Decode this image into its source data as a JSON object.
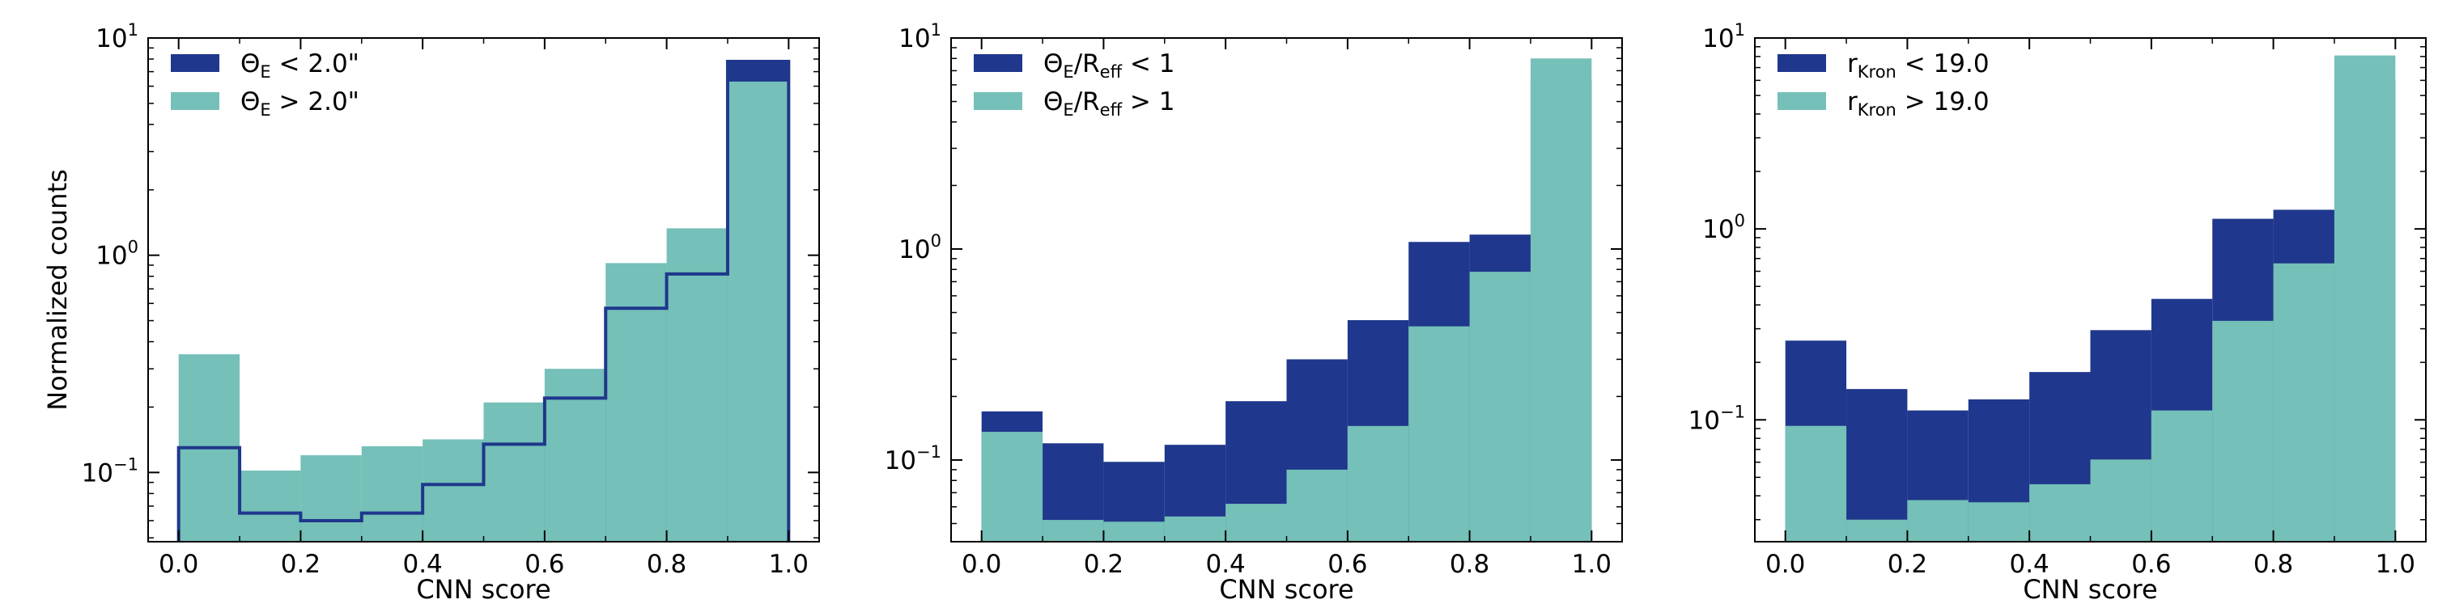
{
  "colors": {
    "dark": "#1f378c",
    "light": "#75c0b8"
  },
  "chart_data": [
    {
      "type": "bar",
      "xlabel": "CNN score",
      "ylabel": "Normalized counts",
      "yscale": "log",
      "xlim": [
        -0.05,
        1.05
      ],
      "ylim": [
        0.048,
        10
      ],
      "xticks": [
        "0.0",
        "0.2",
        "0.4",
        "0.6",
        "0.8",
        "1.0"
      ],
      "yticks": [
        {
          "base": "10",
          "exp": "1",
          "value": 10
        },
        {
          "base": "10",
          "exp": "0",
          "value": 1
        },
        {
          "base": "10",
          "exp": "−1",
          "value": 0.1
        }
      ],
      "bin_edges": [
        0.0,
        0.1,
        0.2,
        0.3,
        0.4,
        0.5,
        0.6,
        0.7,
        0.8,
        0.9,
        1.0
      ],
      "legend_position": "top-left",
      "series": [
        {
          "name_main": "Θ",
          "name_sub": "E",
          "name_rest": " < 2.0\"",
          "color": "dark",
          "values": [
            0.13,
            0.065,
            0.06,
            0.065,
            0.088,
            0.135,
            0.22,
            0.57,
            0.82,
            7.8
          ]
        },
        {
          "name_main": "Θ",
          "name_sub": "E",
          "name_rest": " > 2.0\"",
          "color": "light",
          "values": [
            0.35,
            0.102,
            0.12,
            0.132,
            0.142,
            0.21,
            0.3,
            0.92,
            1.33,
            6.3
          ]
        }
      ]
    },
    {
      "type": "bar",
      "xlabel": "CNN score",
      "ylabel": "",
      "yscale": "log",
      "xlim": [
        -0.05,
        1.05
      ],
      "ylim": [
        0.041,
        10
      ],
      "xticks": [
        "0.0",
        "0.2",
        "0.4",
        "0.6",
        "0.8",
        "1.0"
      ],
      "yticks": [
        {
          "base": "10",
          "exp": "1",
          "value": 10
        },
        {
          "base": "10",
          "exp": "0",
          "value": 1
        },
        {
          "base": "10",
          "exp": "−1",
          "value": 0.1
        }
      ],
      "bin_edges": [
        0.0,
        0.1,
        0.2,
        0.3,
        0.4,
        0.5,
        0.6,
        0.7,
        0.8,
        0.9,
        1.0
      ],
      "legend_position": "top-left",
      "series": [
        {
          "name_main": "Θ",
          "name_sub": "E",
          "name_rest": "/R",
          "name_sub2": "eff",
          "name_rest2": " < 1",
          "color": "dark",
          "values": [
            0.17,
            0.12,
            0.098,
            0.118,
            0.19,
            0.3,
            0.46,
            1.08,
            1.17,
            6.3
          ]
        },
        {
          "name_main": "Θ",
          "name_sub": "E",
          "name_rest": "/R",
          "name_sub2": "eff",
          "name_rest2": " > 1",
          "color": "light",
          "values": [
            0.136,
            0.052,
            0.051,
            0.054,
            0.062,
            0.09,
            0.145,
            0.43,
            0.78,
            8.0
          ]
        }
      ]
    },
    {
      "type": "bar",
      "xlabel": "CNN score",
      "ylabel": "",
      "yscale": "log",
      "xlim": [
        -0.05,
        1.05
      ],
      "ylim": [
        0.023,
        10
      ],
      "xticks": [
        "0.0",
        "0.2",
        "0.4",
        "0.6",
        "0.8",
        "1.0"
      ],
      "yticks": [
        {
          "base": "10",
          "exp": "1",
          "value": 10
        },
        {
          "base": "10",
          "exp": "0",
          "value": 1
        },
        {
          "base": "10",
          "exp": "−1",
          "value": 0.1
        }
      ],
      "bin_edges": [
        0.0,
        0.1,
        0.2,
        0.3,
        0.4,
        0.5,
        0.6,
        0.7,
        0.8,
        0.9,
        1.0
      ],
      "legend_position": "top-left",
      "series": [
        {
          "name_main": "r",
          "name_sub": "Kron",
          "name_rest": " < 19.0",
          "color": "dark",
          "values": [
            0.26,
            0.145,
            0.112,
            0.128,
            0.178,
            0.295,
            0.43,
            1.13,
            1.26,
            6.0
          ]
        },
        {
          "name_main": "r",
          "name_sub": "Kron",
          "name_rest": " > 19.0",
          "color": "light",
          "values": [
            0.093,
            0.03,
            0.038,
            0.037,
            0.046,
            0.062,
            0.112,
            0.33,
            0.66,
            8.1
          ]
        }
      ]
    }
  ]
}
